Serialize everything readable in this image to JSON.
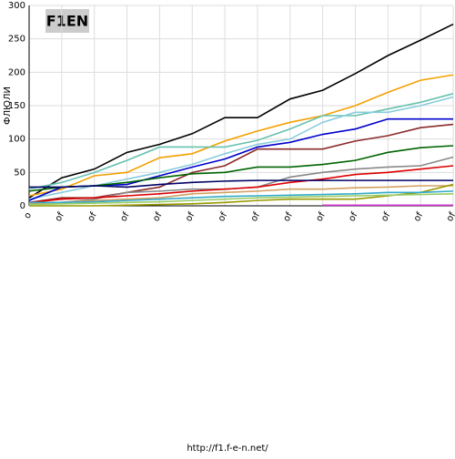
{
  "chart_data": {
    "type": "line",
    "logo": "F1EN",
    "ylabel": "ФЛЮЛИ",
    "footer": "http://f1.f-e-n.net/",
    "categories": [
      "o",
      "of",
      "of",
      "of",
      "of",
      "of",
      "of",
      "of",
      "of",
      "of",
      "of",
      "of",
      "of",
      "of"
    ],
    "ylim": [
      0,
      300
    ],
    "yticks": [
      0,
      50,
      100,
      150,
      200,
      250,
      300
    ],
    "grid": true,
    "series": [
      {
        "color": "#000000",
        "values": [
          12,
          42,
          55,
          80,
          92,
          108,
          132,
          132,
          160,
          173,
          198,
          225,
          248,
          272
        ]
      },
      {
        "color": "#f5a000",
        "values": [
          15,
          25,
          45,
          50,
          72,
          78,
          97,
          112,
          125,
          135,
          150,
          170,
          188,
          196
        ]
      },
      {
        "color": "#66c2b0",
        "values": [
          25,
          35,
          50,
          68,
          88,
          88,
          88,
          98,
          115,
          135,
          135,
          145,
          155,
          168
        ]
      },
      {
        "color": "#88ccdd",
        "values": [
          10,
          20,
          30,
          40,
          50,
          62,
          78,
          92,
          100,
          125,
          140,
          140,
          150,
          163
        ]
      },
      {
        "color": "#0000cc",
        "values": [
          8,
          28,
          30,
          32,
          45,
          58,
          70,
          88,
          95,
          107,
          115,
          130,
          130,
          130
        ]
      },
      {
        "color": "#8b2a2a",
        "values": [
          5,
          12,
          12,
          20,
          28,
          50,
          60,
          85,
          85,
          85,
          97,
          105,
          117,
          122
        ]
      },
      {
        "color": "#006400",
        "values": [
          22,
          28,
          30,
          35,
          42,
          48,
          50,
          58,
          58,
          62,
          68,
          80,
          87,
          90
        ]
      },
      {
        "color": "#888888",
        "values": [
          5,
          5,
          10,
          20,
          22,
          25,
          25,
          28,
          43,
          50,
          55,
          58,
          60,
          73
        ]
      },
      {
        "color": "#dd0000",
        "values": [
          5,
          10,
          12,
          15,
          18,
          22,
          25,
          28,
          35,
          40,
          47,
          50,
          55,
          60
        ]
      },
      {
        "color": "#000066",
        "values": [
          28,
          28,
          30,
          28,
          32,
          35,
          37,
          38,
          38,
          38,
          38,
          38,
          38,
          38
        ]
      },
      {
        "color": "#d2a060",
        "values": [
          3,
          5,
          8,
          10,
          12,
          18,
          20,
          22,
          25,
          25,
          27,
          28,
          30,
          30
        ]
      },
      {
        "color": "#999900",
        "values": [
          0,
          0,
          0,
          1,
          2,
          3,
          5,
          8,
          10,
          10,
          10,
          15,
          20,
          32
        ]
      },
      {
        "color": "#33aacc",
        "values": [
          5,
          5,
          6,
          8,
          10,
          12,
          14,
          15,
          16,
          17,
          18,
          20,
          20,
          22
        ]
      },
      {
        "color": "#99cc66",
        "values": [
          2,
          3,
          4,
          5,
          6,
          8,
          10,
          12,
          13,
          14,
          15,
          16,
          17,
          18
        ]
      },
      {
        "color": "#cc33cc",
        "values": [
          null,
          null,
          null,
          null,
          null,
          null,
          null,
          null,
          null,
          1,
          1,
          1,
          1,
          1
        ]
      }
    ]
  }
}
